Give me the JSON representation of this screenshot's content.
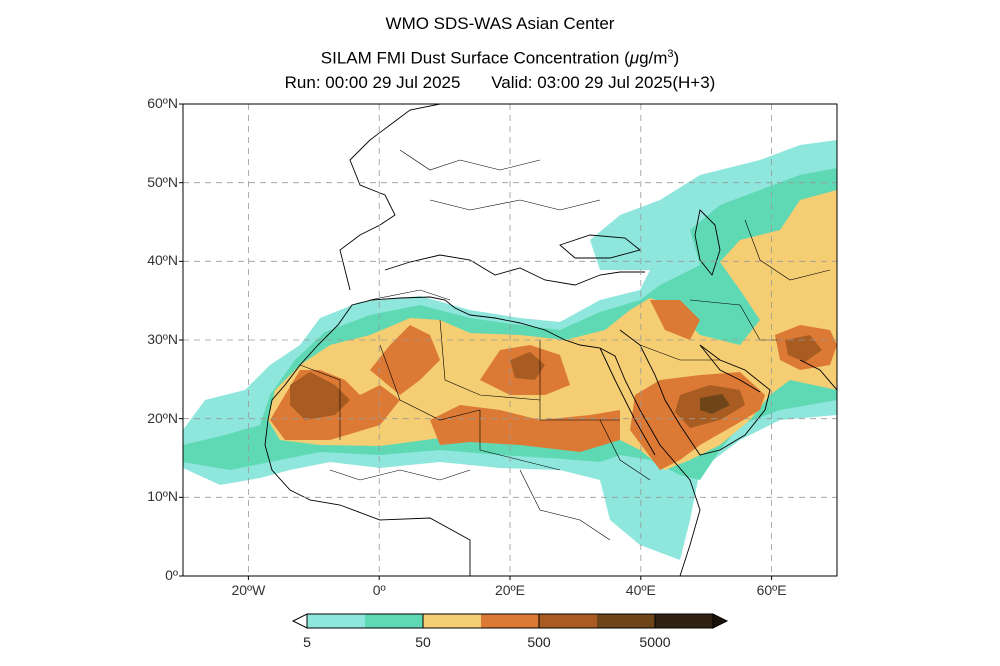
{
  "title": {
    "line1": "WMO SDS-WAS Asian Center",
    "line2_prefix": "SILAM FMI Dust Surface Concentration (",
    "line2_unit_mu": "μ",
    "line2_unit_g": "g/m",
    "line2_unit_sup": "3",
    "line2_suffix": ")",
    "run": "Run: 00:00 29 Jul 2025",
    "valid": "Valid: 03:00 29 Jul 2025(H+3)"
  },
  "map": {
    "lon_range": [
      -30,
      70
    ],
    "lat_range": [
      0,
      60
    ],
    "grid": true,
    "lat_ticks": [
      {
        "value": 60,
        "label": "60ºN"
      },
      {
        "value": 50,
        "label": "50ºN"
      },
      {
        "value": 40,
        "label": "40ºN"
      },
      {
        "value": 30,
        "label": "30ºN"
      },
      {
        "value": 20,
        "label": "20ºN"
      },
      {
        "value": 10,
        "label": "10ºN"
      },
      {
        "value": 0,
        "label": "0º"
      }
    ],
    "lon_ticks": [
      {
        "value": -20,
        "label": "20ºW"
      },
      {
        "value": 0,
        "label": "0º"
      },
      {
        "value": 20,
        "label": "20ºE"
      },
      {
        "value": 40,
        "label": "40ºE"
      },
      {
        "value": 60,
        "label": "60ºE"
      }
    ]
  },
  "colorbar": {
    "colors": [
      "#8ee6dc",
      "#5fd9b4",
      "#f5cd73",
      "#dc7a35",
      "#a85c22",
      "#6e4419",
      "#2f2212"
    ],
    "labels": [
      {
        "value": 5,
        "label": "5"
      },
      {
        "value": 50,
        "label": "50"
      },
      {
        "value": 500,
        "label": "500"
      },
      {
        "value": 5000,
        "label": "5000"
      }
    ]
  }
}
